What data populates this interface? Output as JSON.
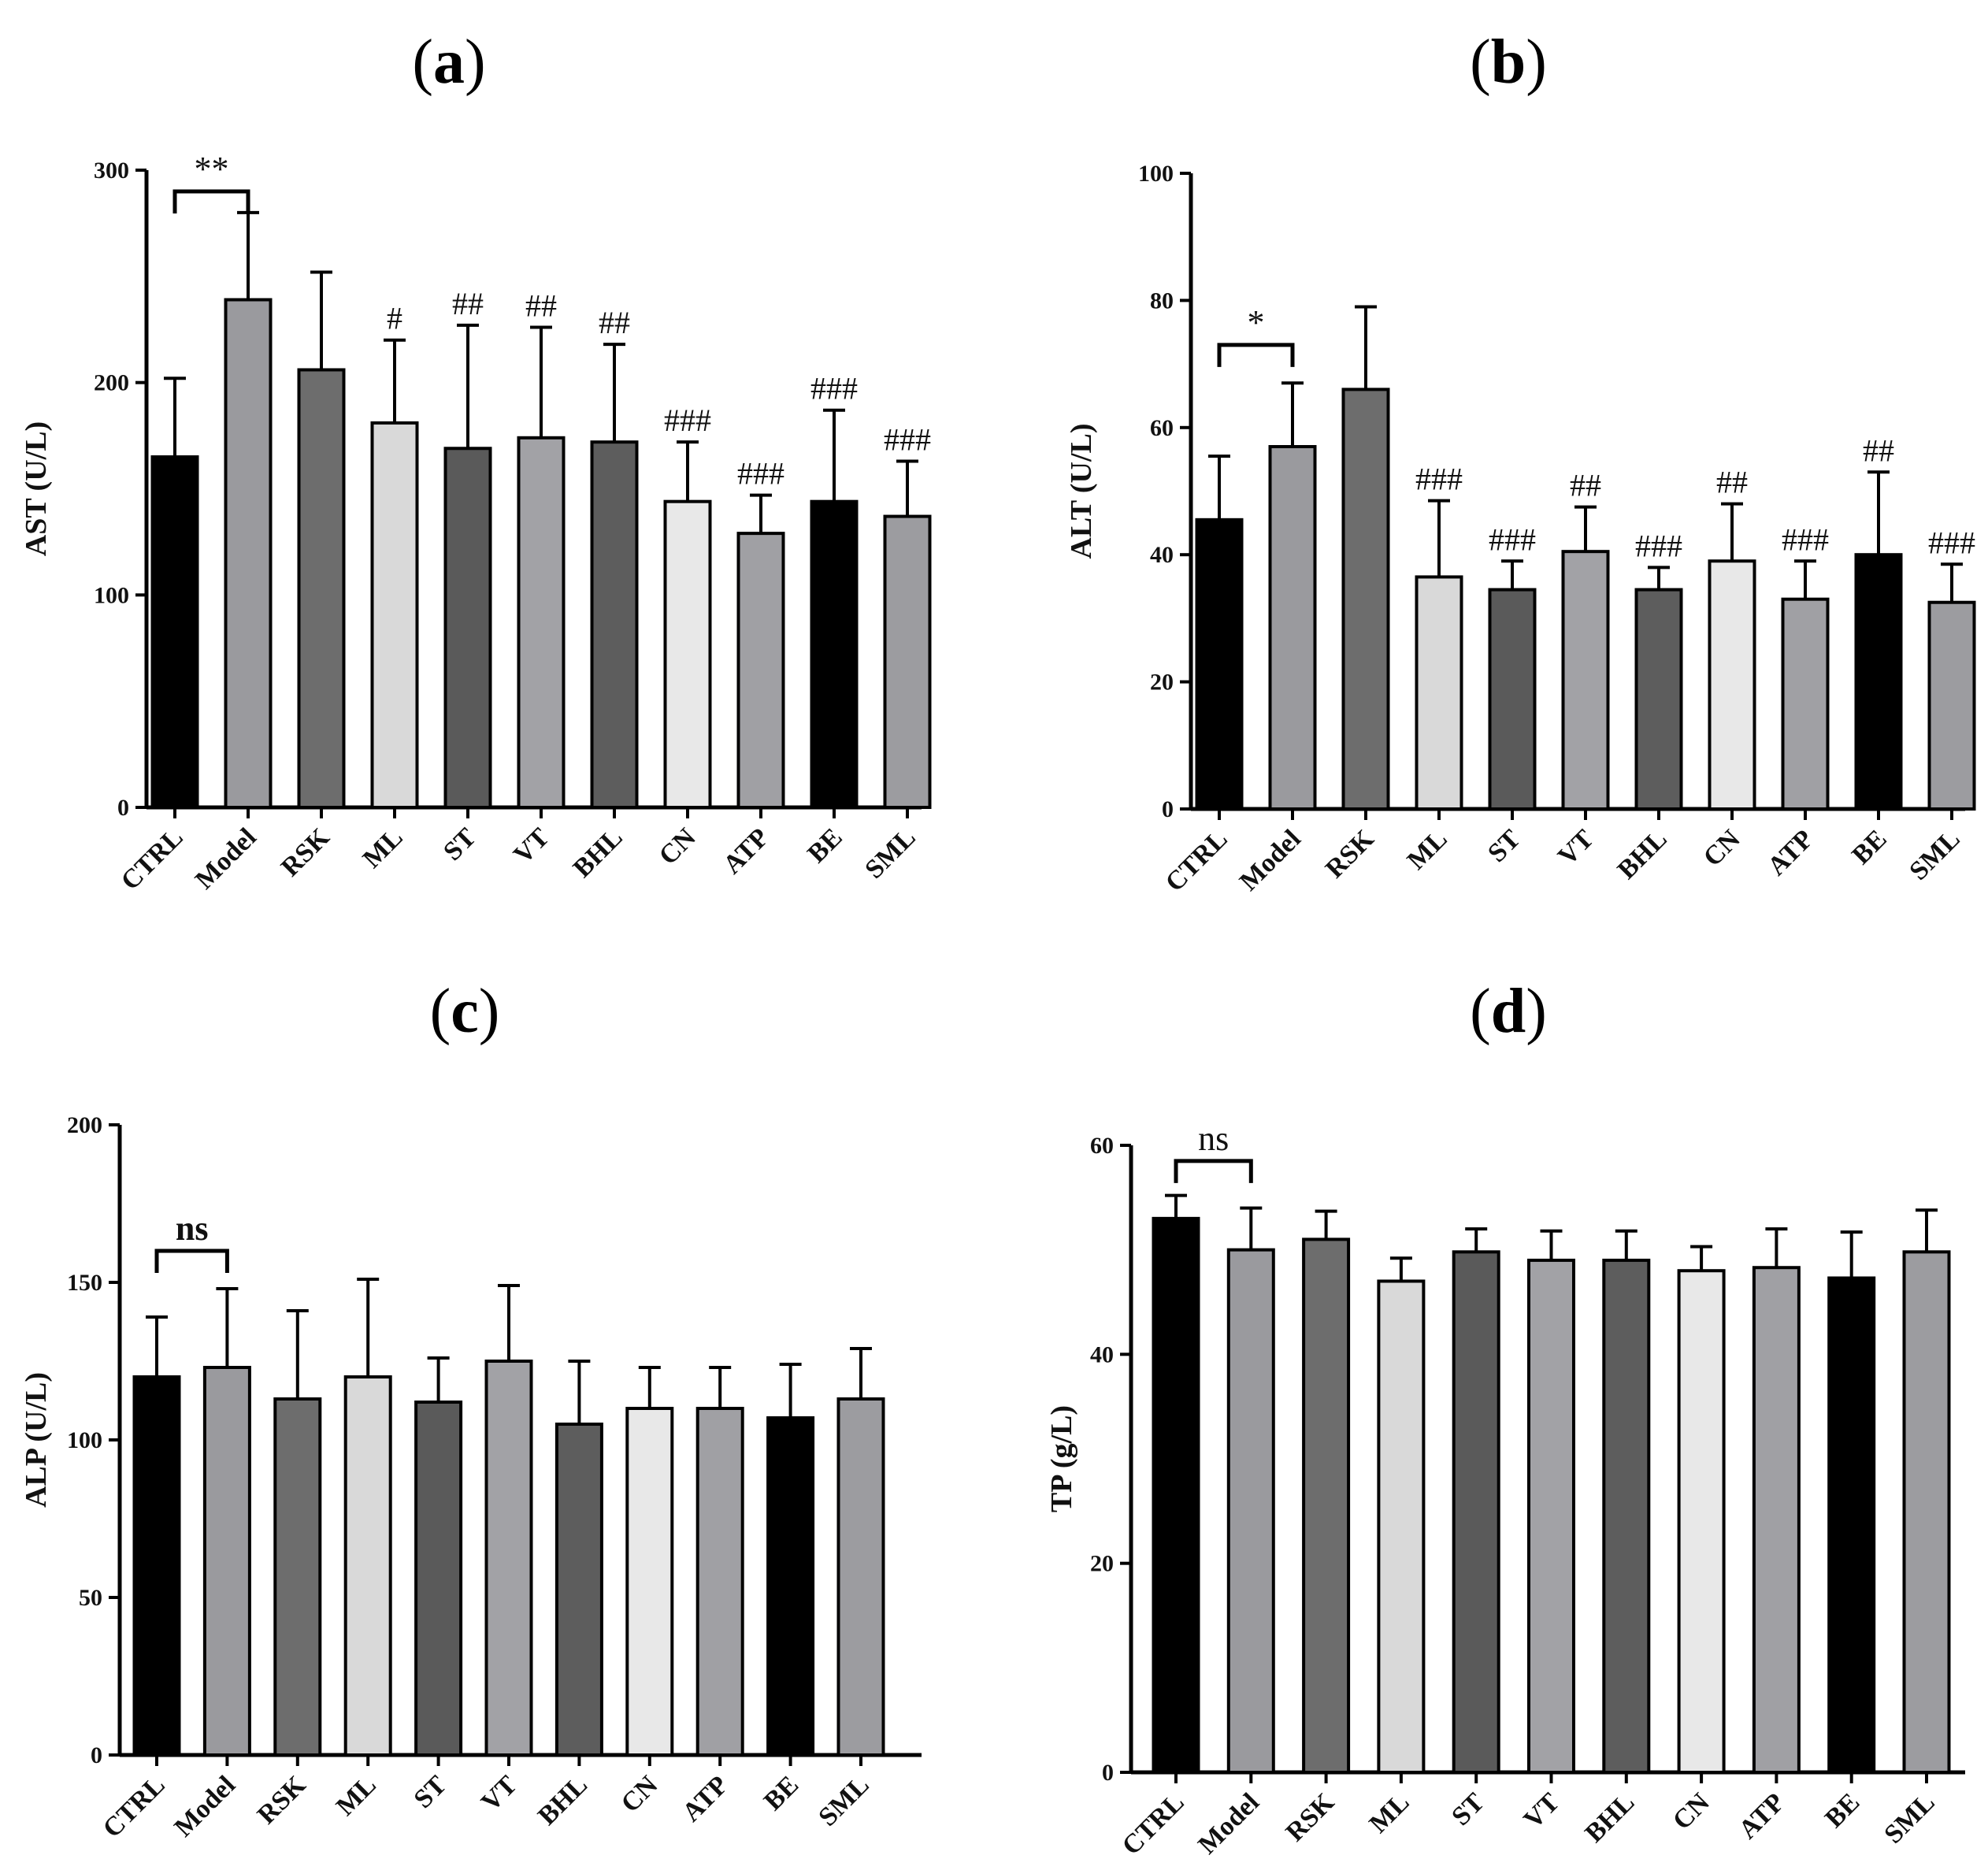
{
  "figure": {
    "panels": [
      "(a)",
      "(b)",
      "(c)",
      "(d)"
    ]
  },
  "colors": {
    "CTRL": "#000000",
    "Model": "#9a9a9e",
    "RSK": "#6d6d6d",
    "ML": "#d9d9d9",
    "ST": "#5a5a5a",
    "VT": "#a2a2a6",
    "BHL": "#5d5d5d",
    "CN": "#e8e8e8",
    "ATP": "#a0a0a4",
    "BE": "#000000",
    "SML": "#9c9ca0"
  },
  "chart_data": [
    {
      "type": "bar",
      "panel": "a",
      "title": "",
      "xlabel": "",
      "ylabel": "AST (U/L)",
      "ylim": [
        0,
        300
      ],
      "yticks": [
        0,
        100,
        200,
        300
      ],
      "categories": [
        "CTRL",
        "Model",
        "RSK",
        "ML",
        "ST",
        "VT",
        "BHL",
        "CN",
        "ATP",
        "BE",
        "SML"
      ],
      "values": [
        165,
        239,
        206,
        181,
        169,
        174,
        172,
        144,
        129,
        144,
        137
      ],
      "errors": [
        37,
        41,
        46,
        39,
        58,
        52,
        46,
        28,
        18,
        43,
        26
      ],
      "significance": [
        "",
        "",
        "",
        "#",
        "##",
        "##",
        "##",
        "###",
        "###",
        "###",
        "###"
      ],
      "comparison": {
        "from": "CTRL",
        "to": "Model",
        "label": "**",
        "value": 290
      }
    },
    {
      "type": "bar",
      "panel": "b",
      "title": "",
      "xlabel": "",
      "ylabel": "ALT (U/L)",
      "ylim": [
        0,
        100
      ],
      "yticks": [
        0,
        20,
        40,
        60,
        80,
        100
      ],
      "categories": [
        "CTRL",
        "Model",
        "RSK",
        "ML",
        "ST",
        "VT",
        "BHL",
        "CN",
        "ATP",
        "BE",
        "SML"
      ],
      "values": [
        45.5,
        57,
        66,
        36.5,
        34.5,
        40.5,
        34.5,
        39,
        33,
        40,
        32.5
      ],
      "errors": [
        10,
        10,
        13,
        12,
        4.5,
        7,
        3.5,
        9,
        6,
        13,
        6
      ],
      "significance": [
        "",
        "",
        "",
        "###",
        "###",
        "##",
        "###",
        "##",
        "###",
        "##",
        "###"
      ],
      "comparison": {
        "from": "CTRL",
        "to": "Model",
        "label": "*",
        "value": 73
      }
    },
    {
      "type": "bar",
      "panel": "c",
      "title": "",
      "xlabel": "",
      "ylabel": "ALP (U/L)",
      "ylim": [
        0,
        200
      ],
      "yticks": [
        0,
        50,
        100,
        150,
        200
      ],
      "categories": [
        "CTRL",
        "Model",
        "RSK",
        "ML",
        "ST",
        "VT",
        "BHL",
        "CN",
        "ATP",
        "BE",
        "SML"
      ],
      "values": [
        120,
        123,
        113,
        120,
        112,
        125,
        105,
        110,
        110,
        107,
        113
      ],
      "errors": [
        19,
        25,
        28,
        31,
        14,
        24,
        20,
        13,
        13,
        17,
        16
      ],
      "significance": [
        "",
        "",
        "",
        "",
        "",
        "",
        "",
        "",
        "",
        "",
        ""
      ],
      "comparison": {
        "from": "CTRL",
        "to": "Model",
        "label": "ns",
        "value": 160
      }
    },
    {
      "type": "bar",
      "panel": "d",
      "title": "",
      "xlabel": "",
      "ylabel": "TP (g/L)",
      "ylim": [
        0,
        60
      ],
      "yticks": [
        0,
        20,
        40,
        60
      ],
      "categories": [
        "CTRL",
        "Model",
        "RSK",
        "ML",
        "ST",
        "VT",
        "BHL",
        "CN",
        "ATP",
        "BE",
        "SML"
      ],
      "values": [
        53,
        50,
        51,
        47,
        49.8,
        49,
        49,
        48,
        48.3,
        47.3,
        49.8
      ],
      "errors": [
        2.2,
        4,
        2.7,
        2.2,
        2.2,
        2.8,
        2.8,
        2.3,
        3.7,
        4.4,
        4
      ],
      "significance": [
        "",
        "",
        "",
        "",
        "",
        "",
        "",
        "",
        "",
        "",
        ""
      ],
      "comparison": {
        "from": "CTRL",
        "to": "Model",
        "label": "ns",
        "value": 58.5
      }
    }
  ]
}
